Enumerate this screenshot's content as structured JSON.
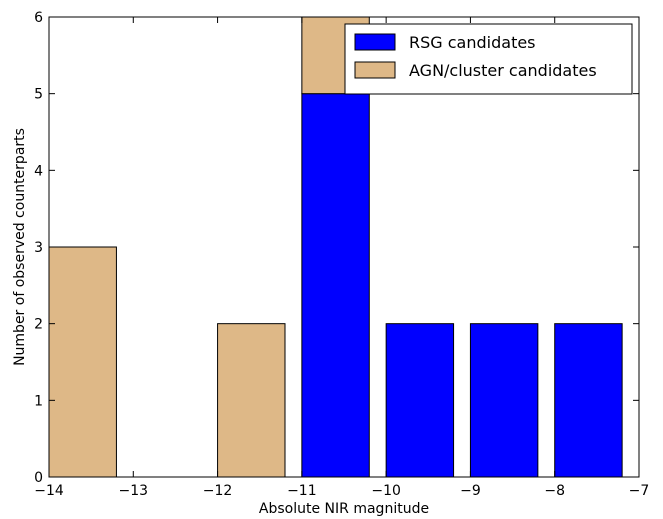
{
  "chart_data": {
    "type": "bar",
    "stacked": true,
    "xlabel": "Absolute NIR magnitude",
    "ylabel": "Number of observed counterparts",
    "xlim": [
      -14,
      -7
    ],
    "ylim": [
      0,
      6
    ],
    "xticks": [
      -14,
      -13,
      -12,
      -11,
      -10,
      -9,
      -8,
      -7
    ],
    "xtick_labels": [
      "−14",
      "−13",
      "−12",
      "−11",
      "−10",
      "−9",
      "−8",
      "−7"
    ],
    "yticks": [
      0,
      1,
      2,
      3,
      4,
      5,
      6
    ],
    "ytick_labels": [
      "0",
      "1",
      "2",
      "3",
      "4",
      "5",
      "6"
    ],
    "bin_width": 0.8,
    "grid": false,
    "legend_position": "top-right",
    "series": [
      {
        "name": "RSG candidates",
        "color": "#0000ff",
        "bars": [
          {
            "x_left": -11.0,
            "value": 5
          },
          {
            "x_left": -10.0,
            "value": 2
          },
          {
            "x_left": -9.0,
            "value": 2
          },
          {
            "x_left": -8.0,
            "value": 2
          }
        ]
      },
      {
        "name": "AGN/cluster candidates",
        "color": "#deb887",
        "bars": [
          {
            "x_left": -14.0,
            "value": 3
          },
          {
            "x_left": -12.0,
            "value": 2
          },
          {
            "x_left": -11.0,
            "value": 1
          }
        ]
      }
    ]
  }
}
